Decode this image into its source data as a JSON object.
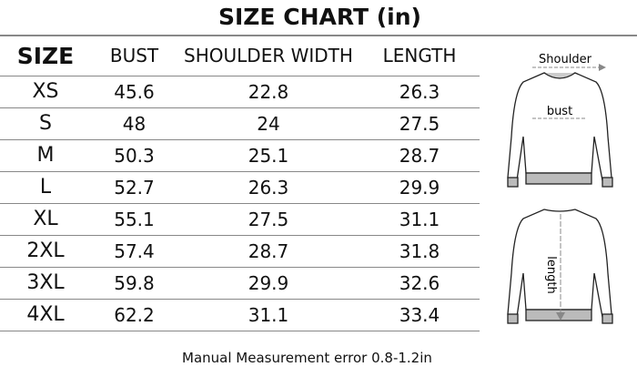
{
  "title": "SIZE CHART (in)",
  "table": {
    "headers": [
      "SIZE",
      "BUST",
      "SHOULDER WIDTH",
      "LENGTH"
    ],
    "rows": [
      [
        "XS",
        "45.6",
        "22.8",
        "26.3"
      ],
      [
        "S",
        "48",
        "24",
        "27.5"
      ],
      [
        "M",
        "50.3",
        "25.1",
        "28.7"
      ],
      [
        "L",
        "52.7",
        "26.3",
        "29.9"
      ],
      [
        "XL",
        "55.1",
        "27.5",
        "31.1"
      ],
      [
        "2XL",
        "57.4",
        "28.7",
        "31.8"
      ],
      [
        "3XL",
        "59.8",
        "29.9",
        "32.6"
      ],
      [
        "4XL",
        "62.2",
        "31.1",
        "33.4"
      ]
    ]
  },
  "diagram": {
    "shoulder_label": "Shoulder",
    "bust_label": "bust",
    "length_label": "length"
  },
  "footer": "Manual Measurement error 0.8-1.2in"
}
